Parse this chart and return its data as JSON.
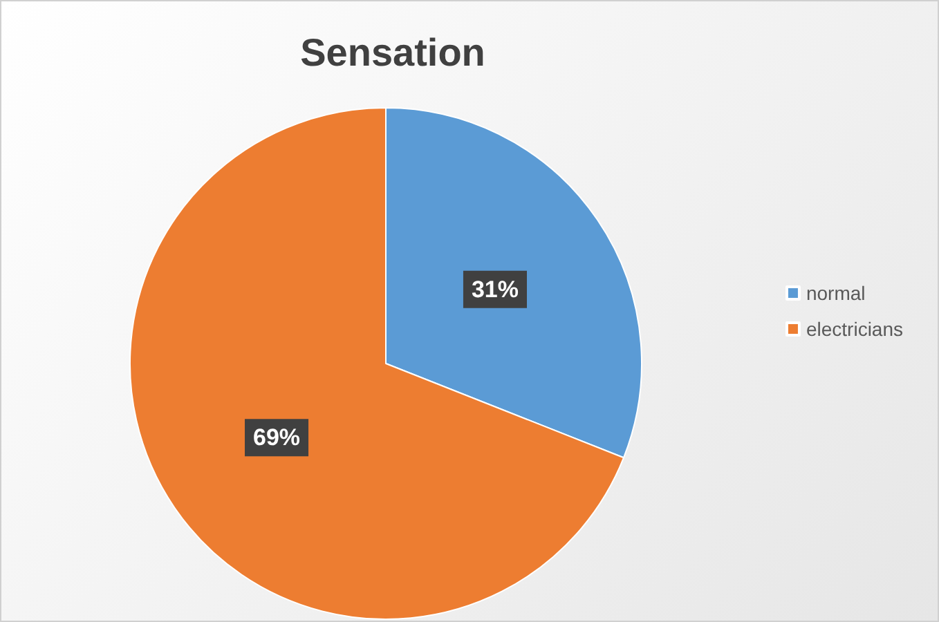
{
  "chart_data": {
    "type": "pie",
    "title": "Sensation",
    "categories": [
      "normal",
      "electricians"
    ],
    "values": [
      31,
      69
    ],
    "colors": [
      "#5b9bd5",
      "#ed7d31"
    ],
    "value_labels": [
      "31%",
      "69%"
    ],
    "legend": "right"
  }
}
